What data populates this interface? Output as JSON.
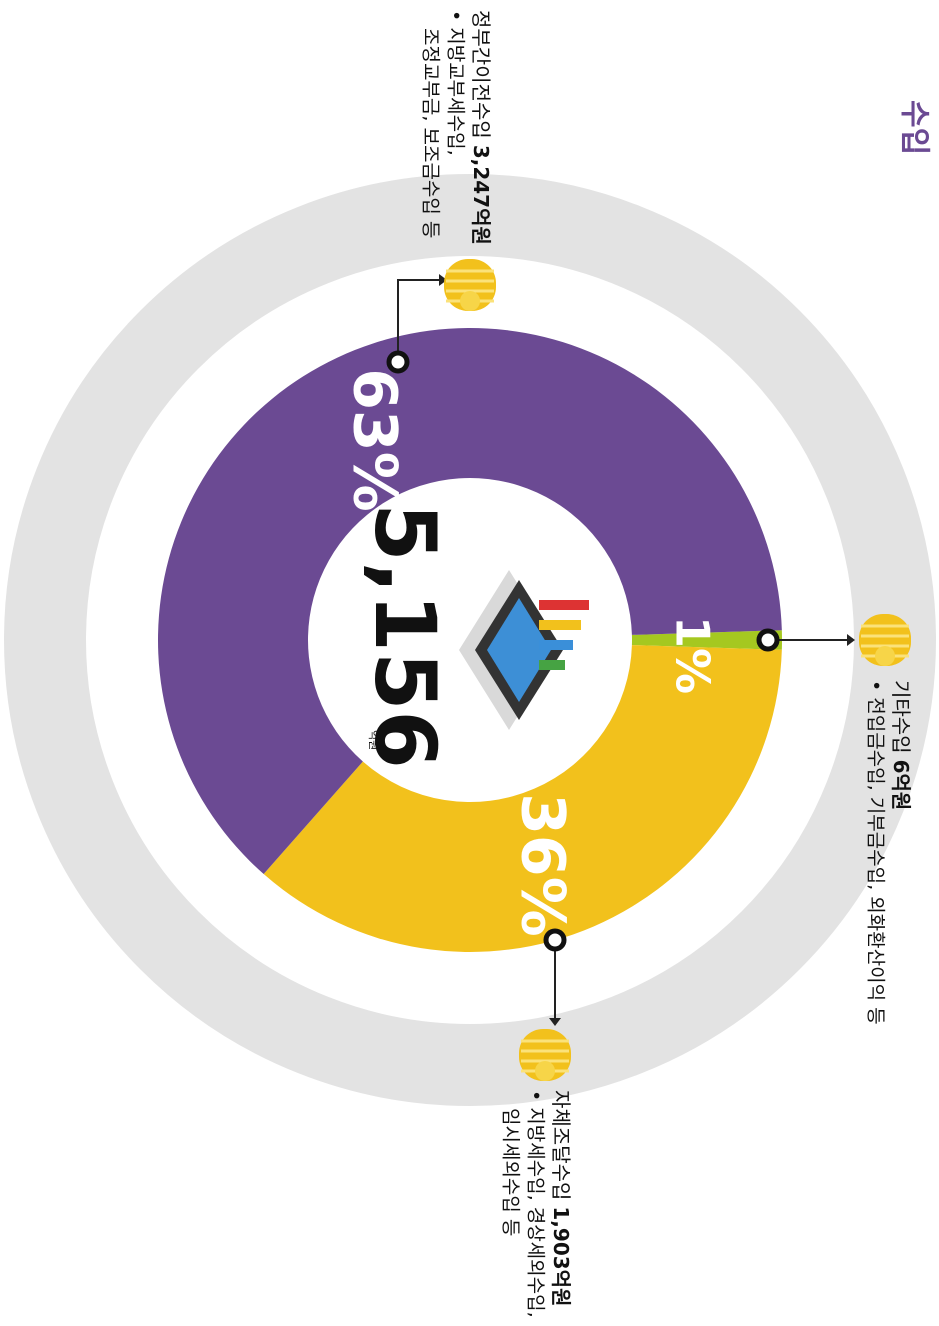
{
  "chart_data": {
    "type": "donut",
    "title": "수입",
    "categories": [
      "기타수입",
      "자체조달수입",
      "정부간이전수입"
    ],
    "values": [
      1,
      36,
      63
    ],
    "value_labels": [
      "1%",
      "36%",
      "63%"
    ],
    "colors": [
      "#a5c820",
      "#f2c11c",
      "#6b4a93"
    ],
    "center_value": "5,156",
    "center_unit": "억원",
    "amounts": [
      "6억원",
      "1,903억원",
      "3,247억원"
    ],
    "details": [
      [
        "• 전입금수입, 기부금수입, 외화환산이익 등"
      ],
      [
        "• 지방세수입, 경상세외수입,",
        "임시세외수입 등"
      ],
      [
        "• 지방교부세수입,",
        "조정교부금, 보조금수입 등"
      ]
    ]
  }
}
